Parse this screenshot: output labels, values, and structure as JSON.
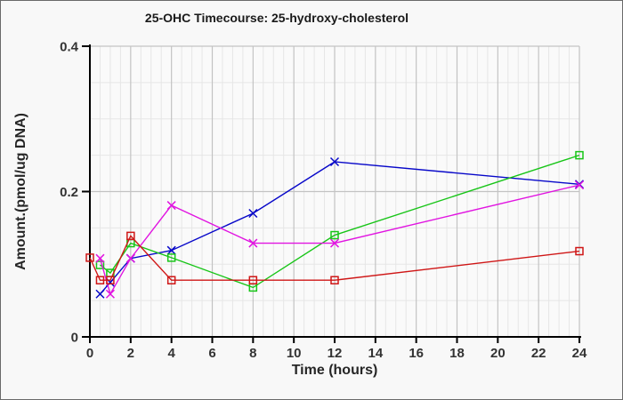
{
  "chart_data": {
    "type": "line",
    "title": "25-OHC Timecourse: 25-hydroxy-cholesterol",
    "xlabel": "Time (hours)",
    "ylabel": "Amount.(pmol/ug DNA)",
    "xlim": [
      0,
      24
    ],
    "ylim": [
      0,
      0.4
    ],
    "x_ticks": [
      0,
      2,
      4,
      6,
      8,
      10,
      12,
      14,
      16,
      18,
      20,
      22,
      24
    ],
    "y_ticks": [
      0,
      0.2,
      0.4
    ],
    "y_tick_labels": [
      "0",
      "0.2",
      "0.4"
    ],
    "grid": {
      "minor_x_step": 0.5,
      "minor_y_step": 0.05,
      "major_x_step": 2,
      "major_y_step": 0.2,
      "legend": "none"
    },
    "series": [
      {
        "name": "blue",
        "marker": "x",
        "color": "#0707c9",
        "x": [
          0.5,
          1,
          2,
          4,
          8,
          12,
          24
        ],
        "y": [
          0.059,
          0.075,
          0.108,
          0.119,
          0.17,
          0.241,
          0.21
        ]
      },
      {
        "name": "green",
        "marker": "square",
        "color": "#17c517",
        "x": [
          0.5,
          1,
          2,
          4,
          8,
          12,
          24
        ],
        "y": [
          0.099,
          0.088,
          0.129,
          0.109,
          0.068,
          0.14,
          0.25
        ]
      },
      {
        "name": "magenta",
        "marker": "x",
        "color": "#e114e1",
        "x": [
          0.5,
          1,
          2,
          4,
          8,
          12,
          24
        ],
        "y": [
          0.108,
          0.059,
          0.108,
          0.181,
          0.129,
          0.129,
          0.209
        ]
      },
      {
        "name": "red",
        "marker": "square",
        "color": "#cf1616",
        "x": [
          0,
          0.5,
          1,
          2,
          4,
          8,
          12,
          24
        ],
        "y": [
          0.109,
          0.078,
          0.078,
          0.139,
          0.078,
          0.078,
          0.078,
          0.118
        ]
      }
    ]
  },
  "colors": {
    "background": "#f8f8f8",
    "plot_background": "#fafafa",
    "minor_grid": "#e6e6e6",
    "major_grid": "#c3c3c3",
    "axis": "#000000",
    "tick_label": "#333333",
    "axis_title": "#262626",
    "title_text": "#1a1a1a",
    "border": "#6a6a6a"
  }
}
